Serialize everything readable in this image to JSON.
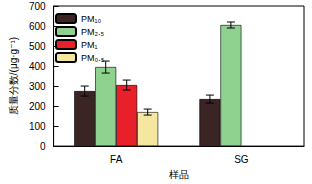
{
  "chart_data": {
    "type": "bar",
    "x_label": "样品",
    "y_label": "质量分数/(μg·g⁻¹)",
    "categories": [
      "FA",
      "SG"
    ],
    "series": [
      {
        "name": "PM₁₀",
        "color": "#3b2424",
        "values": [
          275,
          235
        ],
        "errors": [
          25,
          20
        ]
      },
      {
        "name": "PM₂.₅",
        "color": "#8fd18f",
        "values": [
          395,
          605
        ],
        "errors": [
          30,
          15
        ]
      },
      {
        "name": "PM₁",
        "color": "#e8202a",
        "values": [
          305,
          null
        ],
        "errors": [
          25,
          null
        ]
      },
      {
        "name": "PM₀.₅",
        "color": "#f5e7a0",
        "values": [
          170,
          null
        ],
        "errors": [
          15,
          null
        ]
      }
    ],
    "ylim": [
      0,
      700
    ],
    "yticks": [
      0,
      100,
      200,
      300,
      400,
      500,
      600,
      700
    ],
    "legend": "upper left",
    "grid": false
  }
}
